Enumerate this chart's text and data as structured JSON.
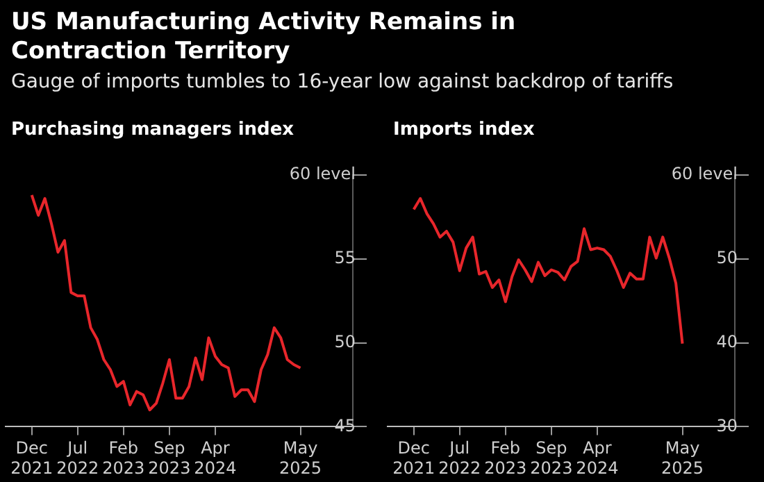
{
  "chart_data": [
    {
      "type": "line",
      "title": "US Manufacturing Activity Remains in Contraction Territory",
      "subtitle": "Gauge of imports tumbles to 16-year low against backdrop of tariffs",
      "ylabel": "Purchasing managers index",
      "color": "#e8262b",
      "grid": false,
      "legend": false,
      "x": [
        "2021-12",
        "2022-01",
        "2022-02",
        "2022-03",
        "2022-04",
        "2022-05",
        "2022-06",
        "2022-07",
        "2022-08",
        "2022-09",
        "2022-10",
        "2022-11",
        "2022-12",
        "2023-01",
        "2023-02",
        "2023-03",
        "2023-04",
        "2023-05",
        "2023-06",
        "2023-07",
        "2023-08",
        "2023-09",
        "2023-10",
        "2023-11",
        "2023-12",
        "2024-01",
        "2024-02",
        "2024-03",
        "2024-04",
        "2024-05",
        "2024-06",
        "2024-07",
        "2024-08",
        "2024-09",
        "2024-10",
        "2024-11",
        "2024-12",
        "2025-01",
        "2025-02",
        "2025-03",
        "2025-04",
        "2025-05"
      ],
      "values": [
        58.8,
        57.6,
        58.6,
        57.1,
        55.4,
        56.1,
        53.0,
        52.8,
        52.8,
        50.9,
        50.2,
        49.0,
        48.4,
        47.4,
        47.7,
        46.3,
        47.1,
        46.9,
        46.0,
        46.4,
        47.6,
        49.0,
        46.7,
        46.7,
        47.4,
        49.1,
        47.8,
        50.3,
        49.2,
        48.7,
        48.5,
        46.8,
        47.2,
        47.2,
        46.5,
        48.4,
        49.3,
        50.9,
        50.3,
        49.0,
        48.7,
        48.5
      ],
      "xlim": [
        "2021-08",
        "2026-01"
      ],
      "xticks": [
        {
          "value": "2021-12",
          "label": "Dec 2021"
        },
        {
          "value": "2022-07",
          "label": "Jul 2022"
        },
        {
          "value": "2023-02",
          "label": "Feb 2023"
        },
        {
          "value": "2023-09",
          "label": "Sep 2023"
        },
        {
          "value": "2024-04",
          "label": "Apr 2024"
        },
        {
          "value": "2025-05",
          "label": "May 2025"
        }
      ],
      "ylim": [
        45,
        60
      ],
      "yticks": [
        45,
        50,
        55,
        {
          "value": 60,
          "label": "60 level"
        }
      ]
    },
    {
      "type": "line",
      "ylabel": "Imports index",
      "color": "#e8262b",
      "grid": false,
      "legend": false,
      "x": [
        "2021-12",
        "2022-01",
        "2022-02",
        "2022-03",
        "2022-04",
        "2022-05",
        "2022-06",
        "2022-07",
        "2022-08",
        "2022-09",
        "2022-10",
        "2022-11",
        "2022-12",
        "2023-01",
        "2023-02",
        "2023-03",
        "2023-04",
        "2023-05",
        "2023-06",
        "2023-07",
        "2023-08",
        "2023-09",
        "2023-10",
        "2023-11",
        "2023-12",
        "2024-01",
        "2024-02",
        "2024-03",
        "2024-04",
        "2024-05",
        "2024-06",
        "2024-07",
        "2024-08",
        "2024-09",
        "2024-10",
        "2024-11",
        "2024-12",
        "2025-01",
        "2025-02",
        "2025-03",
        "2025-04",
        "2025-05"
      ],
      "values": [
        55.9,
        57.2,
        55.4,
        54.2,
        52.6,
        53.3,
        52.0,
        48.6,
        51.3,
        52.6,
        48.2,
        48.5,
        46.6,
        47.5,
        44.9,
        47.9,
        49.9,
        48.7,
        47.3,
        49.6,
        48.0,
        48.7,
        48.4,
        47.5,
        49.1,
        49.7,
        53.6,
        51.1,
        51.3,
        51.1,
        50.3,
        48.6,
        46.6,
        48.3,
        47.6,
        47.6,
        52.6,
        50.1,
        52.6,
        50.1,
        47.1,
        39.9
      ],
      "xlim": [
        "2021-08",
        "2026-01"
      ],
      "xticks": [
        {
          "value": "2021-12",
          "label": "Dec 2021"
        },
        {
          "value": "2022-07",
          "label": "Jul 2022"
        },
        {
          "value": "2023-02",
          "label": "Feb 2023"
        },
        {
          "value": "2023-09",
          "label": "Sep 2023"
        },
        {
          "value": "2024-04",
          "label": "Apr 2024"
        },
        {
          "value": "2025-05",
          "label": "May 2025"
        }
      ],
      "ylim": [
        30,
        60
      ],
      "yticks": [
        30,
        40,
        50,
        {
          "value": 60,
          "label": "60 level"
        }
      ]
    }
  ]
}
